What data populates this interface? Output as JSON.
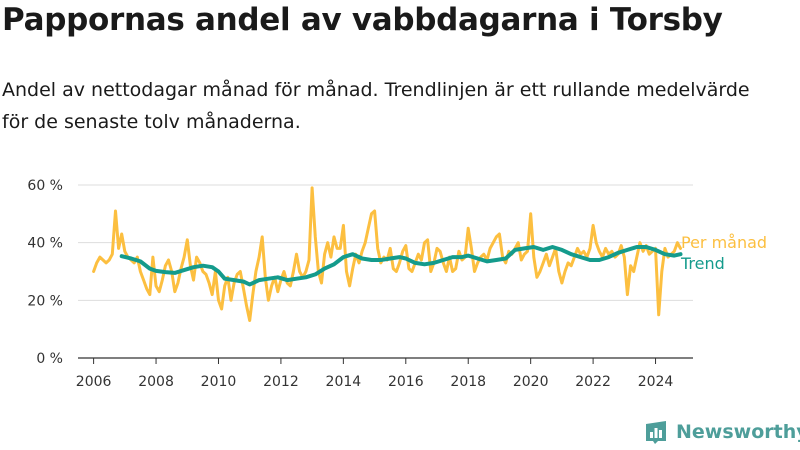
{
  "header": {
    "title": "Pappornas andel av vabbdagarna i Torsby",
    "subtitle": "Andel av nettodagar månad för månad. Trendlinjen är ett rullande medelvärde för de senaste tolv månaderna."
  },
  "logo": {
    "text": "Newsworthy",
    "icon": "newsworthy-logo-icon"
  },
  "colors": {
    "monthly": "#fcbf40",
    "trend": "#149b8c",
    "grid": "#dddddd",
    "axis": "#333333",
    "brand": "#4e9e9a"
  },
  "chart_data": {
    "type": "line",
    "title": "Pappornas andel av vabbdagarna i Torsby",
    "subtitle": "Andel av nettodagar månad för månad. Trendlinjen är ett rullande medelvärde för de senaste tolv månaderna.",
    "y_unit": "%",
    "xlim": [
      2005.5,
      2025.2
    ],
    "ylim": [
      0,
      60
    ],
    "grid": "horizontal",
    "x_ticks": [
      2006,
      2008,
      2010,
      2012,
      2014,
      2016,
      2018,
      2020,
      2022,
      2024
    ],
    "x_tick_labels": [
      "2006",
      "2008",
      "2010",
      "2012",
      "2014",
      "2016",
      "2018",
      "2020",
      "2022",
      "2024"
    ],
    "y_ticks": [
      0,
      20,
      40,
      60
    ],
    "y_tick_labels": [
      "0 %",
      "20 %",
      "40 %",
      "60 %"
    ],
    "legend_placement": "right, at line ends",
    "series": [
      {
        "name": "Per månad",
        "color": "#fcbf40",
        "points": [
          [
            2006.0,
            30
          ],
          [
            2006.1,
            33
          ],
          [
            2006.2,
            35
          ],
          [
            2006.3,
            34
          ],
          [
            2006.4,
            33
          ],
          [
            2006.5,
            34
          ],
          [
            2006.6,
            36
          ],
          [
            2006.7,
            51
          ],
          [
            2006.8,
            38
          ],
          [
            2006.9,
            43
          ],
          [
            2007.0,
            37
          ],
          [
            2007.1,
            35
          ],
          [
            2007.2,
            34
          ],
          [
            2007.3,
            33
          ],
          [
            2007.4,
            35
          ],
          [
            2007.5,
            30
          ],
          [
            2007.6,
            27
          ],
          [
            2007.7,
            24
          ],
          [
            2007.8,
            22
          ],
          [
            2007.9,
            35
          ],
          [
            2008.0,
            25
          ],
          [
            2008.1,
            23
          ],
          [
            2008.2,
            27
          ],
          [
            2008.3,
            32
          ],
          [
            2008.4,
            34
          ],
          [
            2008.5,
            30
          ],
          [
            2008.6,
            23
          ],
          [
            2008.7,
            26
          ],
          [
            2008.8,
            31
          ],
          [
            2008.9,
            35
          ],
          [
            2009.0,
            41
          ],
          [
            2009.1,
            32
          ],
          [
            2009.2,
            27
          ],
          [
            2009.3,
            35
          ],
          [
            2009.4,
            33
          ],
          [
            2009.5,
            30
          ],
          [
            2009.6,
            29
          ],
          [
            2009.7,
            26
          ],
          [
            2009.8,
            22
          ],
          [
            2009.9,
            30
          ],
          [
            2010.0,
            20
          ],
          [
            2010.1,
            17
          ],
          [
            2010.2,
            25
          ],
          [
            2010.3,
            28
          ],
          [
            2010.4,
            20
          ],
          [
            2010.5,
            26
          ],
          [
            2010.6,
            29
          ],
          [
            2010.7,
            30
          ],
          [
            2010.8,
            24
          ],
          [
            2010.9,
            18
          ],
          [
            2011.0,
            13
          ],
          [
            2011.1,
            22
          ],
          [
            2011.2,
            30
          ],
          [
            2011.3,
            35
          ],
          [
            2011.4,
            42
          ],
          [
            2011.5,
            28
          ],
          [
            2011.6,
            20
          ],
          [
            2011.7,
            25
          ],
          [
            2011.8,
            28
          ],
          [
            2011.9,
            23
          ],
          [
            2012.0,
            27
          ],
          [
            2012.1,
            30
          ],
          [
            2012.2,
            26
          ],
          [
            2012.3,
            25
          ],
          [
            2012.4,
            30
          ],
          [
            2012.5,
            36
          ],
          [
            2012.6,
            30
          ],
          [
            2012.7,
            28
          ],
          [
            2012.8,
            30
          ],
          [
            2012.9,
            34
          ],
          [
            2013.0,
            59
          ],
          [
            2013.1,
            42
          ],
          [
            2013.2,
            30
          ],
          [
            2013.3,
            26
          ],
          [
            2013.4,
            36
          ],
          [
            2013.5,
            40
          ],
          [
            2013.6,
            35
          ],
          [
            2013.7,
            42
          ],
          [
            2013.8,
            38
          ],
          [
            2013.9,
            38
          ],
          [
            2014.0,
            46
          ],
          [
            2014.1,
            30
          ],
          [
            2014.2,
            25
          ],
          [
            2014.3,
            31
          ],
          [
            2014.4,
            36
          ],
          [
            2014.5,
            33
          ],
          [
            2014.6,
            37
          ],
          [
            2014.7,
            40
          ],
          [
            2014.8,
            45
          ],
          [
            2014.9,
            50
          ],
          [
            2015.0,
            51
          ],
          [
            2015.1,
            38
          ],
          [
            2015.2,
            33
          ],
          [
            2015.3,
            35
          ],
          [
            2015.4,
            34
          ],
          [
            2015.5,
            38
          ],
          [
            2015.6,
            31
          ],
          [
            2015.7,
            30
          ],
          [
            2015.8,
            33
          ],
          [
            2015.9,
            37
          ],
          [
            2016.0,
            39
          ],
          [
            2016.1,
            31
          ],
          [
            2016.2,
            30
          ],
          [
            2016.3,
            33
          ],
          [
            2016.4,
            36
          ],
          [
            2016.5,
            34
          ],
          [
            2016.6,
            40
          ],
          [
            2016.7,
            41
          ],
          [
            2016.8,
            30
          ],
          [
            2016.9,
            33
          ],
          [
            2017.0,
            38
          ],
          [
            2017.1,
            37
          ],
          [
            2017.2,
            33
          ],
          [
            2017.3,
            30
          ],
          [
            2017.4,
            35
          ],
          [
            2017.5,
            30
          ],
          [
            2017.6,
            31
          ],
          [
            2017.7,
            37
          ],
          [
            2017.8,
            34
          ],
          [
            2017.9,
            35
          ],
          [
            2018.0,
            45
          ],
          [
            2018.1,
            38
          ],
          [
            2018.2,
            30
          ],
          [
            2018.3,
            33
          ],
          [
            2018.4,
            35
          ],
          [
            2018.5,
            36
          ],
          [
            2018.6,
            34
          ],
          [
            2018.7,
            38
          ],
          [
            2018.8,
            40
          ],
          [
            2018.9,
            42
          ],
          [
            2019.0,
            43
          ],
          [
            2019.1,
            35
          ],
          [
            2019.2,
            33
          ],
          [
            2019.3,
            37
          ],
          [
            2019.4,
            36
          ],
          [
            2019.5,
            38
          ],
          [
            2019.6,
            40
          ],
          [
            2019.7,
            34
          ],
          [
            2019.8,
            36
          ],
          [
            2019.9,
            37
          ],
          [
            2020.0,
            50
          ],
          [
            2020.1,
            35
          ],
          [
            2020.2,
            28
          ],
          [
            2020.3,
            30
          ],
          [
            2020.4,
            33
          ],
          [
            2020.5,
            36
          ],
          [
            2020.6,
            32
          ],
          [
            2020.7,
            35
          ],
          [
            2020.8,
            38
          ],
          [
            2020.9,
            30
          ],
          [
            2021.0,
            26
          ],
          [
            2021.1,
            30
          ],
          [
            2021.2,
            33
          ],
          [
            2021.3,
            32
          ],
          [
            2021.4,
            35
          ],
          [
            2021.5,
            38
          ],
          [
            2021.6,
            36
          ],
          [
            2021.7,
            37
          ],
          [
            2021.8,
            35
          ],
          [
            2021.9,
            38
          ],
          [
            2022.0,
            46
          ],
          [
            2022.1,
            40
          ],
          [
            2022.2,
            37
          ],
          [
            2022.3,
            35
          ],
          [
            2022.4,
            38
          ],
          [
            2022.5,
            36
          ],
          [
            2022.6,
            37
          ],
          [
            2022.7,
            35
          ],
          [
            2022.8,
            36
          ],
          [
            2022.9,
            39
          ],
          [
            2023.0,
            35
          ],
          [
            2023.1,
            22
          ],
          [
            2023.2,
            32
          ],
          [
            2023.3,
            30
          ],
          [
            2023.4,
            35
          ],
          [
            2023.5,
            40
          ],
          [
            2023.6,
            37
          ],
          [
            2023.7,
            39
          ],
          [
            2023.8,
            36
          ],
          [
            2023.9,
            37
          ],
          [
            2024.0,
            38
          ],
          [
            2024.1,
            15
          ],
          [
            2024.2,
            30
          ],
          [
            2024.3,
            38
          ],
          [
            2024.4,
            35
          ],
          [
            2024.5,
            36
          ],
          [
            2024.6,
            37
          ],
          [
            2024.7,
            40
          ],
          [
            2024.8,
            38
          ]
        ]
      },
      {
        "name": "Trend",
        "color": "#149b8c",
        "points": [
          [
            2006.9,
            35.3
          ],
          [
            2007.2,
            34.5
          ],
          [
            2007.5,
            33.5
          ],
          [
            2007.8,
            31.0
          ],
          [
            2008.0,
            30.2
          ],
          [
            2008.3,
            29.8
          ],
          [
            2008.6,
            29.5
          ],
          [
            2008.9,
            30.5
          ],
          [
            2009.2,
            31.5
          ],
          [
            2009.5,
            32.0
          ],
          [
            2009.8,
            31.5
          ],
          [
            2010.0,
            30.0
          ],
          [
            2010.2,
            27.5
          ],
          [
            2010.5,
            27.0
          ],
          [
            2010.8,
            26.5
          ],
          [
            2011.0,
            25.5
          ],
          [
            2011.3,
            27.0
          ],
          [
            2011.6,
            27.5
          ],
          [
            2011.9,
            28.0
          ],
          [
            2012.2,
            27.0
          ],
          [
            2012.5,
            27.5
          ],
          [
            2012.8,
            28.0
          ],
          [
            2013.1,
            29.0
          ],
          [
            2013.4,
            31.0
          ],
          [
            2013.7,
            32.5
          ],
          [
            2014.0,
            35.0
          ],
          [
            2014.3,
            36.0
          ],
          [
            2014.6,
            34.5
          ],
          [
            2014.9,
            34.0
          ],
          [
            2015.2,
            34.0
          ],
          [
            2015.5,
            34.5
          ],
          [
            2015.8,
            35.0
          ],
          [
            2016.0,
            34.5
          ],
          [
            2016.3,
            33.0
          ],
          [
            2016.6,
            32.5
          ],
          [
            2016.9,
            33.0
          ],
          [
            2017.2,
            34.0
          ],
          [
            2017.5,
            35.0
          ],
          [
            2017.8,
            35.0
          ],
          [
            2018.0,
            35.5
          ],
          [
            2018.3,
            34.5
          ],
          [
            2018.6,
            33.5
          ],
          [
            2018.9,
            34.0
          ],
          [
            2019.2,
            34.5
          ],
          [
            2019.5,
            37.5
          ],
          [
            2019.8,
            38.0
          ],
          [
            2020.1,
            38.5
          ],
          [
            2020.4,
            37.5
          ],
          [
            2020.7,
            38.5
          ],
          [
            2021.0,
            37.5
          ],
          [
            2021.3,
            36.0
          ],
          [
            2021.6,
            35.0
          ],
          [
            2021.9,
            34.0
          ],
          [
            2022.2,
            34.0
          ],
          [
            2022.5,
            35.0
          ],
          [
            2022.8,
            36.5
          ],
          [
            2023.1,
            37.5
          ],
          [
            2023.4,
            38.5
          ],
          [
            2023.7,
            38.5
          ],
          [
            2024.0,
            37.5
          ],
          [
            2024.3,
            36.0
          ],
          [
            2024.6,
            35.5
          ],
          [
            2024.8,
            36.0
          ]
        ]
      }
    ]
  }
}
